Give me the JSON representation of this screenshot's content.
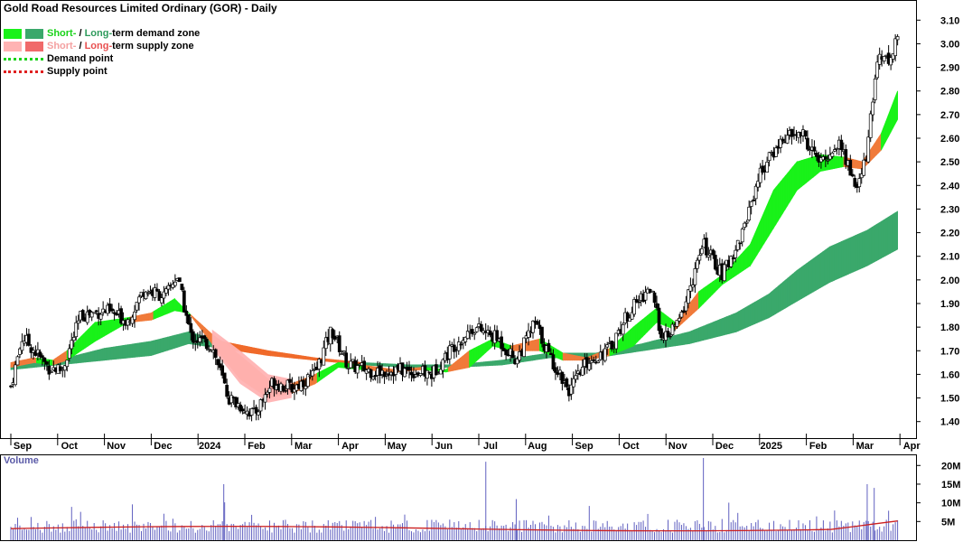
{
  "title": "Gold Road Resources Limited Ordinary (GOR) - Daily",
  "legend": {
    "row1": {
      "short": "Short-",
      "sep": " / ",
      "long": "Long-",
      "rest": "term demand zone"
    },
    "row2": {
      "short": "Short-",
      "sep": " / ",
      "long": "Long-",
      "rest": "term supply zone"
    },
    "row3": "Demand point",
    "row4": "Supply point"
  },
  "colors": {
    "short_demand": "#19f219",
    "long_demand": "#3aa86b",
    "short_supply": "#ffb3b3",
    "long_supply": "#f06a2a",
    "demand_point": "#19d219",
    "supply_point": "#e02020",
    "volume_bar": "#6060c0",
    "volume_avg": "#cc2020"
  },
  "chart_data": {
    "type": "candlestick",
    "title": "Gold Road Resources Limited Ordinary (GOR) - Daily",
    "x_tick_labels": [
      "Sep",
      "Oct",
      "Nov",
      "Dec",
      "2024",
      "Feb",
      "Mar",
      "Apr",
      "May",
      "Jun",
      "Jul",
      "Aug",
      "Sep",
      "Oct",
      "Nov",
      "Dec",
      "2025",
      "Feb",
      "Mar",
      "Apr"
    ],
    "y_ticks": [
      1.4,
      1.5,
      1.6,
      1.7,
      1.8,
      1.9,
      2.0,
      2.1,
      2.2,
      2.3,
      2.4,
      2.5,
      2.6,
      2.7,
      2.8,
      2.9,
      3.0,
      3.1
    ],
    "y_tick_labels": [
      "1.40",
      "1.50",
      "1.60",
      "1.70",
      "1.80",
      "1.90",
      "2.00",
      "2.10",
      "2.20",
      "2.30",
      "2.40",
      "2.50",
      "2.60",
      "2.70",
      "2.80",
      "2.90",
      "3.00",
      "3.10"
    ],
    "ylim": [
      1.33,
      3.17
    ],
    "volume_label": "Volume",
    "volume_ticks": [
      5,
      10,
      15,
      20
    ],
    "volume_tick_labels": [
      "5M",
      "10M",
      "15M",
      "20M"
    ],
    "volume_ylim": [
      0,
      22
    ],
    "price_keypoints": [
      {
        "month": 0.0,
        "price": 1.55
      },
      {
        "month": 0.25,
        "price": 1.76
      },
      {
        "month": 0.8,
        "price": 1.63
      },
      {
        "month": 1.1,
        "price": 1.62
      },
      {
        "month": 1.5,
        "price": 1.85
      },
      {
        "month": 2.0,
        "price": 1.87
      },
      {
        "month": 2.5,
        "price": 1.83
      },
      {
        "month": 2.85,
        "price": 1.96
      },
      {
        "month": 3.3,
        "price": 1.93
      },
      {
        "month": 3.55,
        "price": 2.02
      },
      {
        "month": 3.85,
        "price": 1.76
      },
      {
        "month": 4.3,
        "price": 1.72
      },
      {
        "month": 4.65,
        "price": 1.5
      },
      {
        "month": 5.2,
        "price": 1.43
      },
      {
        "month": 5.6,
        "price": 1.57
      },
      {
        "month": 6.0,
        "price": 1.54
      },
      {
        "month": 6.5,
        "price": 1.6
      },
      {
        "month": 6.85,
        "price": 1.79
      },
      {
        "month": 7.2,
        "price": 1.64
      },
      {
        "month": 7.8,
        "price": 1.61
      },
      {
        "month": 8.3,
        "price": 1.62
      },
      {
        "month": 9.0,
        "price": 1.6
      },
      {
        "month": 9.45,
        "price": 1.72
      },
      {
        "month": 9.9,
        "price": 1.8
      },
      {
        "month": 10.4,
        "price": 1.75
      },
      {
        "month": 10.8,
        "price": 1.66
      },
      {
        "month": 11.2,
        "price": 1.82
      },
      {
        "month": 11.5,
        "price": 1.68
      },
      {
        "month": 11.95,
        "price": 1.53
      },
      {
        "month": 12.3,
        "price": 1.65
      },
      {
        "month": 12.8,
        "price": 1.71
      },
      {
        "month": 13.2,
        "price": 1.86
      },
      {
        "month": 13.65,
        "price": 1.97
      },
      {
        "month": 13.95,
        "price": 1.74
      },
      {
        "month": 14.3,
        "price": 1.83
      },
      {
        "month": 14.8,
        "price": 2.15
      },
      {
        "month": 15.2,
        "price": 2.02
      },
      {
        "month": 15.6,
        "price": 2.18
      },
      {
        "month": 16.0,
        "price": 2.45
      },
      {
        "month": 16.5,
        "price": 2.6
      },
      {
        "month": 16.9,
        "price": 2.62
      },
      {
        "month": 17.3,
        "price": 2.49
      },
      {
        "month": 17.7,
        "price": 2.58
      },
      {
        "month": 18.1,
        "price": 2.38
      },
      {
        "month": 18.3,
        "price": 2.55
      },
      {
        "month": 18.55,
        "price": 2.98
      },
      {
        "month": 18.75,
        "price": 2.92
      },
      {
        "month": 18.95,
        "price": 3.03
      }
    ],
    "short_zone": [
      {
        "month": 0.0,
        "top": 1.65,
        "bottom": 1.63,
        "zone": "supply"
      },
      {
        "month": 0.5,
        "top": 1.67,
        "bottom": 1.65,
        "zone": "demand"
      },
      {
        "month": 0.9,
        "top": 1.66,
        "bottom": 1.64,
        "zone": "supply"
      },
      {
        "month": 1.2,
        "top": 1.7,
        "bottom": 1.66,
        "zone": "demand"
      },
      {
        "month": 1.8,
        "top": 1.82,
        "bottom": 1.74,
        "zone": "demand"
      },
      {
        "month": 2.5,
        "top": 1.84,
        "bottom": 1.82,
        "zone": "supply"
      },
      {
        "month": 3.0,
        "top": 1.86,
        "bottom": 1.83,
        "zone": "demand"
      },
      {
        "month": 3.5,
        "top": 1.92,
        "bottom": 1.87,
        "zone": "demand"
      },
      {
        "month": 3.8,
        "top": 1.86,
        "bottom": 1.86,
        "zone": "supply"
      },
      {
        "month": 4.3,
        "top": 1.77,
        "bottom": 1.73,
        "zone": "supply"
      },
      {
        "month": 4.9,
        "top": 1.68,
        "bottom": 1.58,
        "zone": "supply"
      },
      {
        "month": 5.5,
        "top": 1.58,
        "bottom": 1.5,
        "zone": "supply"
      },
      {
        "month": 6.0,
        "top": 1.56,
        "bottom": 1.52,
        "zone": "supply"
      },
      {
        "month": 6.5,
        "top": 1.6,
        "bottom": 1.56,
        "zone": "demand"
      },
      {
        "month": 7.0,
        "top": 1.65,
        "bottom": 1.63,
        "zone": "demand"
      },
      {
        "month": 7.5,
        "top": 1.64,
        "bottom": 1.62,
        "zone": "supply"
      },
      {
        "month": 8.2,
        "top": 1.62,
        "bottom": 1.61,
        "zone": "supply"
      },
      {
        "month": 8.8,
        "top": 1.63,
        "bottom": 1.62,
        "zone": "demand"
      },
      {
        "month": 9.3,
        "top": 1.62,
        "bottom": 1.61,
        "zone": "supply"
      },
      {
        "month": 9.8,
        "top": 1.7,
        "bottom": 1.63,
        "zone": "demand"
      },
      {
        "month": 10.3,
        "top": 1.75,
        "bottom": 1.72,
        "zone": "demand"
      },
      {
        "month": 10.7,
        "top": 1.72,
        "bottom": 1.7,
        "zone": "supply"
      },
      {
        "month": 11.3,
        "top": 1.75,
        "bottom": 1.7,
        "zone": "demand"
      },
      {
        "month": 11.8,
        "top": 1.69,
        "bottom": 1.66,
        "zone": "supply"
      },
      {
        "month": 12.3,
        "top": 1.67,
        "bottom": 1.66,
        "zone": "supply"
      },
      {
        "month": 12.8,
        "top": 1.71,
        "bottom": 1.68,
        "zone": "demand"
      },
      {
        "month": 13.3,
        "top": 1.8,
        "bottom": 1.72,
        "zone": "demand"
      },
      {
        "month": 13.8,
        "top": 1.88,
        "bottom": 1.82,
        "zone": "demand"
      },
      {
        "month": 14.2,
        "top": 1.82,
        "bottom": 1.79,
        "zone": "supply"
      },
      {
        "month": 14.7,
        "top": 1.95,
        "bottom": 1.88,
        "zone": "demand"
      },
      {
        "month": 15.2,
        "top": 2.02,
        "bottom": 1.98,
        "zone": "demand"
      },
      {
        "month": 15.8,
        "top": 2.15,
        "bottom": 2.06,
        "zone": "demand"
      },
      {
        "month": 16.3,
        "top": 2.38,
        "bottom": 2.22,
        "zone": "demand"
      },
      {
        "month": 16.8,
        "top": 2.5,
        "bottom": 2.38,
        "zone": "demand"
      },
      {
        "month": 17.3,
        "top": 2.53,
        "bottom": 2.46,
        "zone": "demand"
      },
      {
        "month": 17.8,
        "top": 2.52,
        "bottom": 2.48,
        "zone": "supply"
      },
      {
        "month": 18.2,
        "top": 2.5,
        "bottom": 2.47,
        "zone": "supply"
      },
      {
        "month": 18.6,
        "top": 2.62,
        "bottom": 2.55,
        "zone": "demand"
      },
      {
        "month": 18.95,
        "top": 2.8,
        "bottom": 2.68,
        "zone": "demand"
      }
    ],
    "long_zone": [
      {
        "month": 0.0,
        "top": 1.64,
        "bottom": 1.62
      },
      {
        "month": 1.0,
        "top": 1.66,
        "bottom": 1.64
      },
      {
        "month": 2.0,
        "top": 1.71,
        "bottom": 1.66
      },
      {
        "month": 3.0,
        "top": 1.74,
        "bottom": 1.68
      },
      {
        "month": 3.8,
        "top": 1.78,
        "bottom": 1.73
      },
      {
        "month": 4.5,
        "top": 1.74,
        "bottom": 1.71,
        "zone": "supply"
      },
      {
        "month": 5.5,
        "top": 1.7,
        "bottom": 1.68,
        "zone": "supply"
      },
      {
        "month": 6.5,
        "top": 1.67,
        "bottom": 1.66,
        "zone": "supply"
      },
      {
        "month": 7.5,
        "top": 1.65,
        "bottom": 1.64
      },
      {
        "month": 8.5,
        "top": 1.64,
        "bottom": 1.63
      },
      {
        "month": 9.5,
        "top": 1.64,
        "bottom": 1.63
      },
      {
        "month": 10.5,
        "top": 1.66,
        "bottom": 1.64
      },
      {
        "month": 11.5,
        "top": 1.69,
        "bottom": 1.67
      },
      {
        "month": 12.5,
        "top": 1.69,
        "bottom": 1.67
      },
      {
        "month": 13.5,
        "top": 1.73,
        "bottom": 1.7
      },
      {
        "month": 14.5,
        "top": 1.78,
        "bottom": 1.73
      },
      {
        "month": 15.5,
        "top": 1.86,
        "bottom": 1.78
      },
      {
        "month": 16.2,
        "top": 1.94,
        "bottom": 1.84
      },
      {
        "month": 16.8,
        "top": 2.04,
        "bottom": 1.91
      },
      {
        "month": 17.5,
        "top": 2.14,
        "bottom": 1.99
      },
      {
        "month": 18.3,
        "top": 2.21,
        "bottom": 2.06
      },
      {
        "month": 18.95,
        "top": 2.29,
        "bottom": 2.13
      }
    ],
    "volume_spikes": [
      {
        "month": 4.55,
        "value": 15
      },
      {
        "month": 10.15,
        "value": 21
      },
      {
        "month": 14.8,
        "value": 22
      },
      {
        "month": 10.8,
        "value": 11
      },
      {
        "month": 18.3,
        "value": 15
      },
      {
        "month": 18.45,
        "value": 14
      }
    ]
  }
}
